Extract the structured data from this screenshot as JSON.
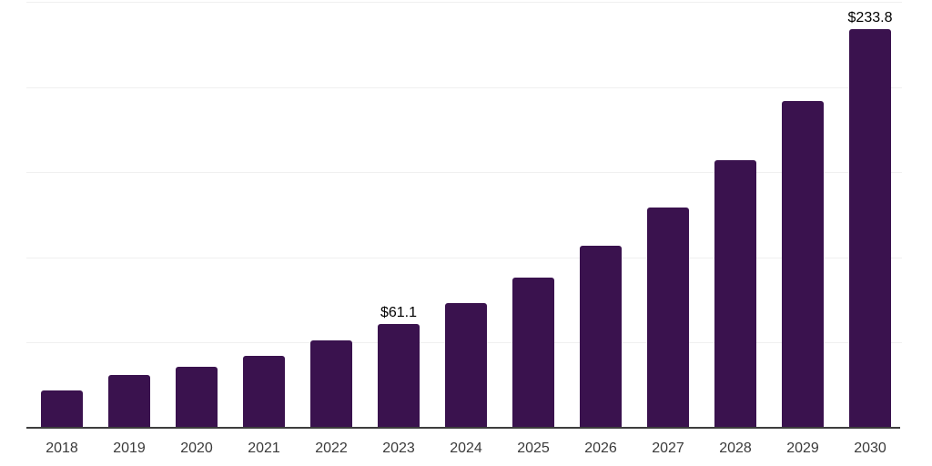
{
  "chart_data": {
    "type": "bar",
    "title": "",
    "xlabel": "",
    "ylabel": "",
    "categories": [
      "2018",
      "2019",
      "2020",
      "2021",
      "2022",
      "2023",
      "2024",
      "2025",
      "2026",
      "2027",
      "2028",
      "2029",
      "2030"
    ],
    "values": [
      21.9,
      30.8,
      35.6,
      42.2,
      51.3,
      61.1,
      73.0,
      88.1,
      106.8,
      129.1,
      156.8,
      191.9,
      233.8
    ],
    "value_labels": [
      "",
      "",
      "",
      "",
      "",
      "$61.1",
      "",
      "",
      "",
      "",
      "",
      "",
      "$233.8"
    ],
    "ylim": [
      0,
      250
    ],
    "gridline_step": 50,
    "grid": "horizontal",
    "y_axis_labels_visible": false,
    "legend": "none",
    "colors": {
      "bar": "#3A124E",
      "value_label": "#000000",
      "tick_label": "#3a3a3a",
      "axis": "#3d3d3d",
      "gridline": "#f0f0f0",
      "background": "#ffffff"
    }
  }
}
